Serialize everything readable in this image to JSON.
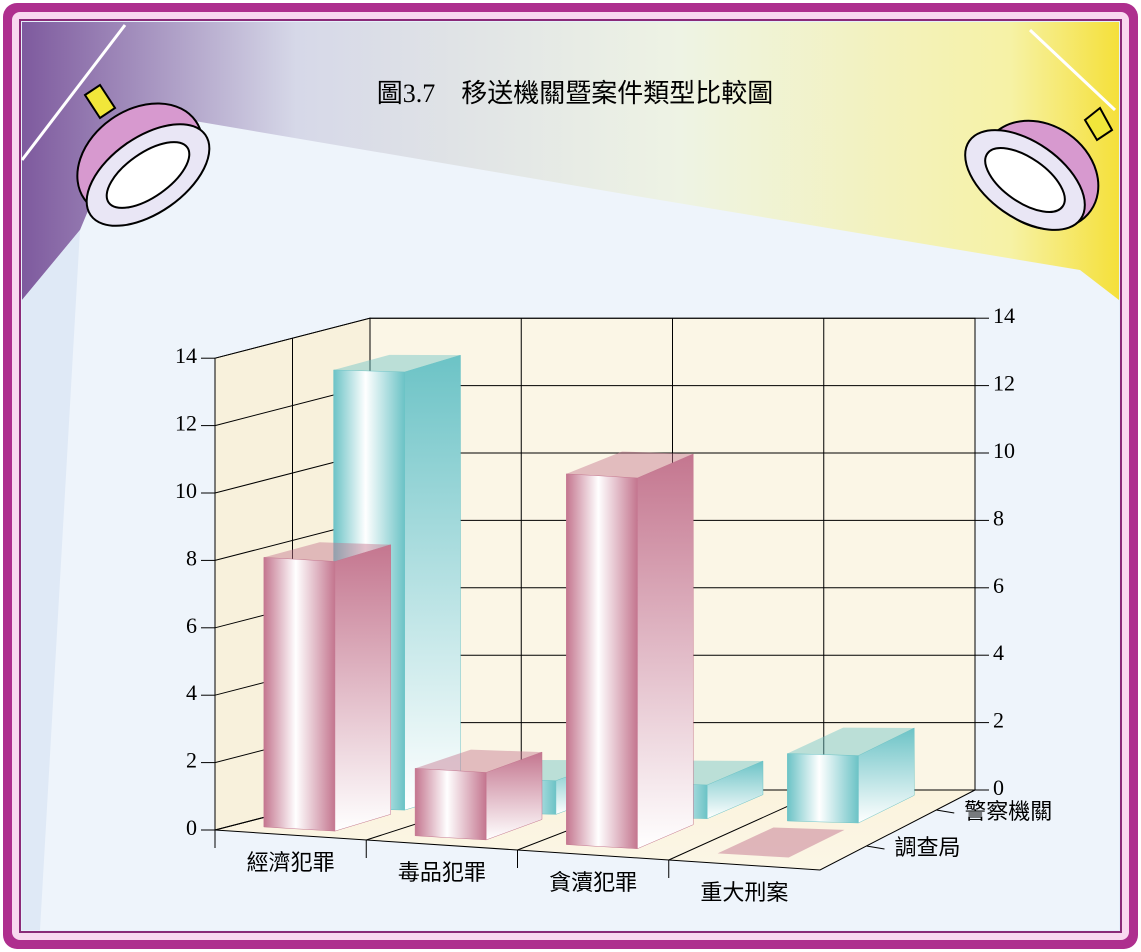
{
  "chart_data": {
    "type": "bar3d",
    "title": "圖3.7　移送機關暨案件類型比較圖",
    "categories": [
      "經濟犯罪",
      "毒品犯罪",
      "貪瀆犯罪",
      "重大刑案"
    ],
    "series": [
      {
        "name": "調查局",
        "color": "#c4768f",
        "values": [
          8,
          2,
          11,
          0
        ]
      },
      {
        "name": "警察機關",
        "color": "#6cc3c6",
        "values": [
          13,
          1,
          1,
          2
        ]
      }
    ],
    "ylim": [
      0,
      14
    ],
    "yticks": [
      0,
      2,
      4,
      6,
      8,
      10,
      12,
      14
    ],
    "grid": true
  }
}
